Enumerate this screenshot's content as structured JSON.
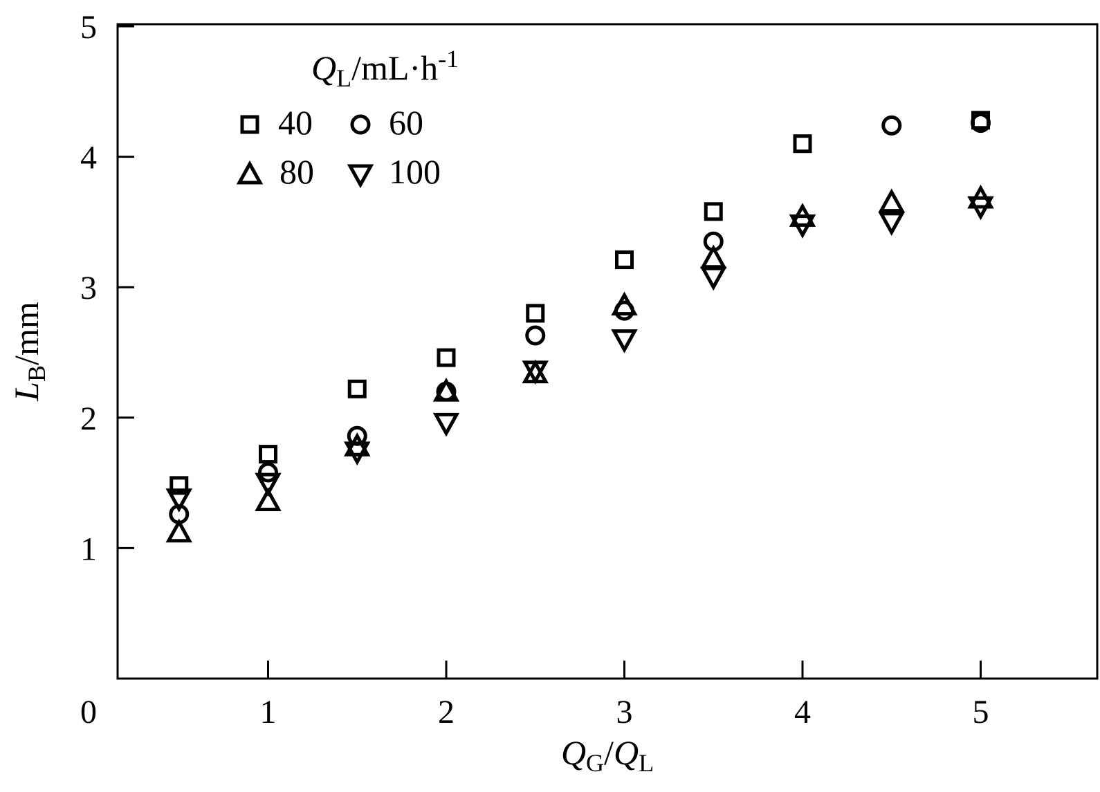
{
  "chart_data": {
    "type": "scatter",
    "xlim": [
      0,
      5.5
    ],
    "ylim": [
      0,
      5
    ],
    "x_ticks": [
      "1",
      "2",
      "3",
      "4",
      "5"
    ],
    "x_tick_values": [
      1,
      2,
      3,
      4,
      5
    ],
    "y_ticks": [
      "1",
      "2",
      "3",
      "4",
      "5"
    ],
    "y_tick_values": [
      1,
      2,
      3,
      4,
      5
    ],
    "origin_label": "0",
    "xlabel": {
      "a": "Q",
      "a_sub": "G",
      "sep": "/",
      "b": "Q",
      "b_sub": "L"
    },
    "ylabel": {
      "main": "L",
      "sub": "B",
      "unit": "/mm"
    },
    "legend": {
      "title": {
        "main": "Q",
        "sub": "L",
        "unit": "/mL·h",
        "sup": "-1"
      },
      "position": "top-left"
    },
    "grid": false,
    "series": [
      {
        "name": "40",
        "marker": "square",
        "x": [
          0.5,
          1.0,
          1.5,
          2.0,
          2.5,
          3.0,
          3.5,
          4.0,
          5.0
        ],
        "y": [
          1.48,
          1.72,
          2.22,
          2.46,
          2.8,
          3.21,
          3.58,
          4.1,
          4.28
        ]
      },
      {
        "name": "60",
        "marker": "circle",
        "x": [
          0.5,
          1.0,
          1.5,
          2.0,
          2.5,
          3.0,
          3.5,
          4.5,
          5.0
        ],
        "y": [
          1.26,
          1.58,
          1.86,
          2.2,
          2.63,
          2.82,
          3.35,
          4.24,
          4.26
        ]
      },
      {
        "name": "80",
        "marker": "triangle-up",
        "x": [
          0.5,
          1.0,
          1.5,
          2.0,
          2.5,
          3.0,
          3.5,
          4.0,
          4.5,
          5.0
        ],
        "y": [
          1.12,
          1.36,
          1.78,
          2.2,
          2.34,
          2.86,
          3.22,
          3.54,
          3.65,
          3.68
        ]
      },
      {
        "name": "100",
        "marker": "triangle-down",
        "x": [
          0.5,
          1.0,
          1.5,
          2.0,
          2.5,
          3.0,
          3.5,
          4.0,
          4.5,
          5.0
        ],
        "y": [
          1.38,
          1.5,
          1.74,
          1.96,
          2.36,
          2.6,
          3.08,
          3.48,
          3.5,
          3.62
        ]
      }
    ]
  }
}
